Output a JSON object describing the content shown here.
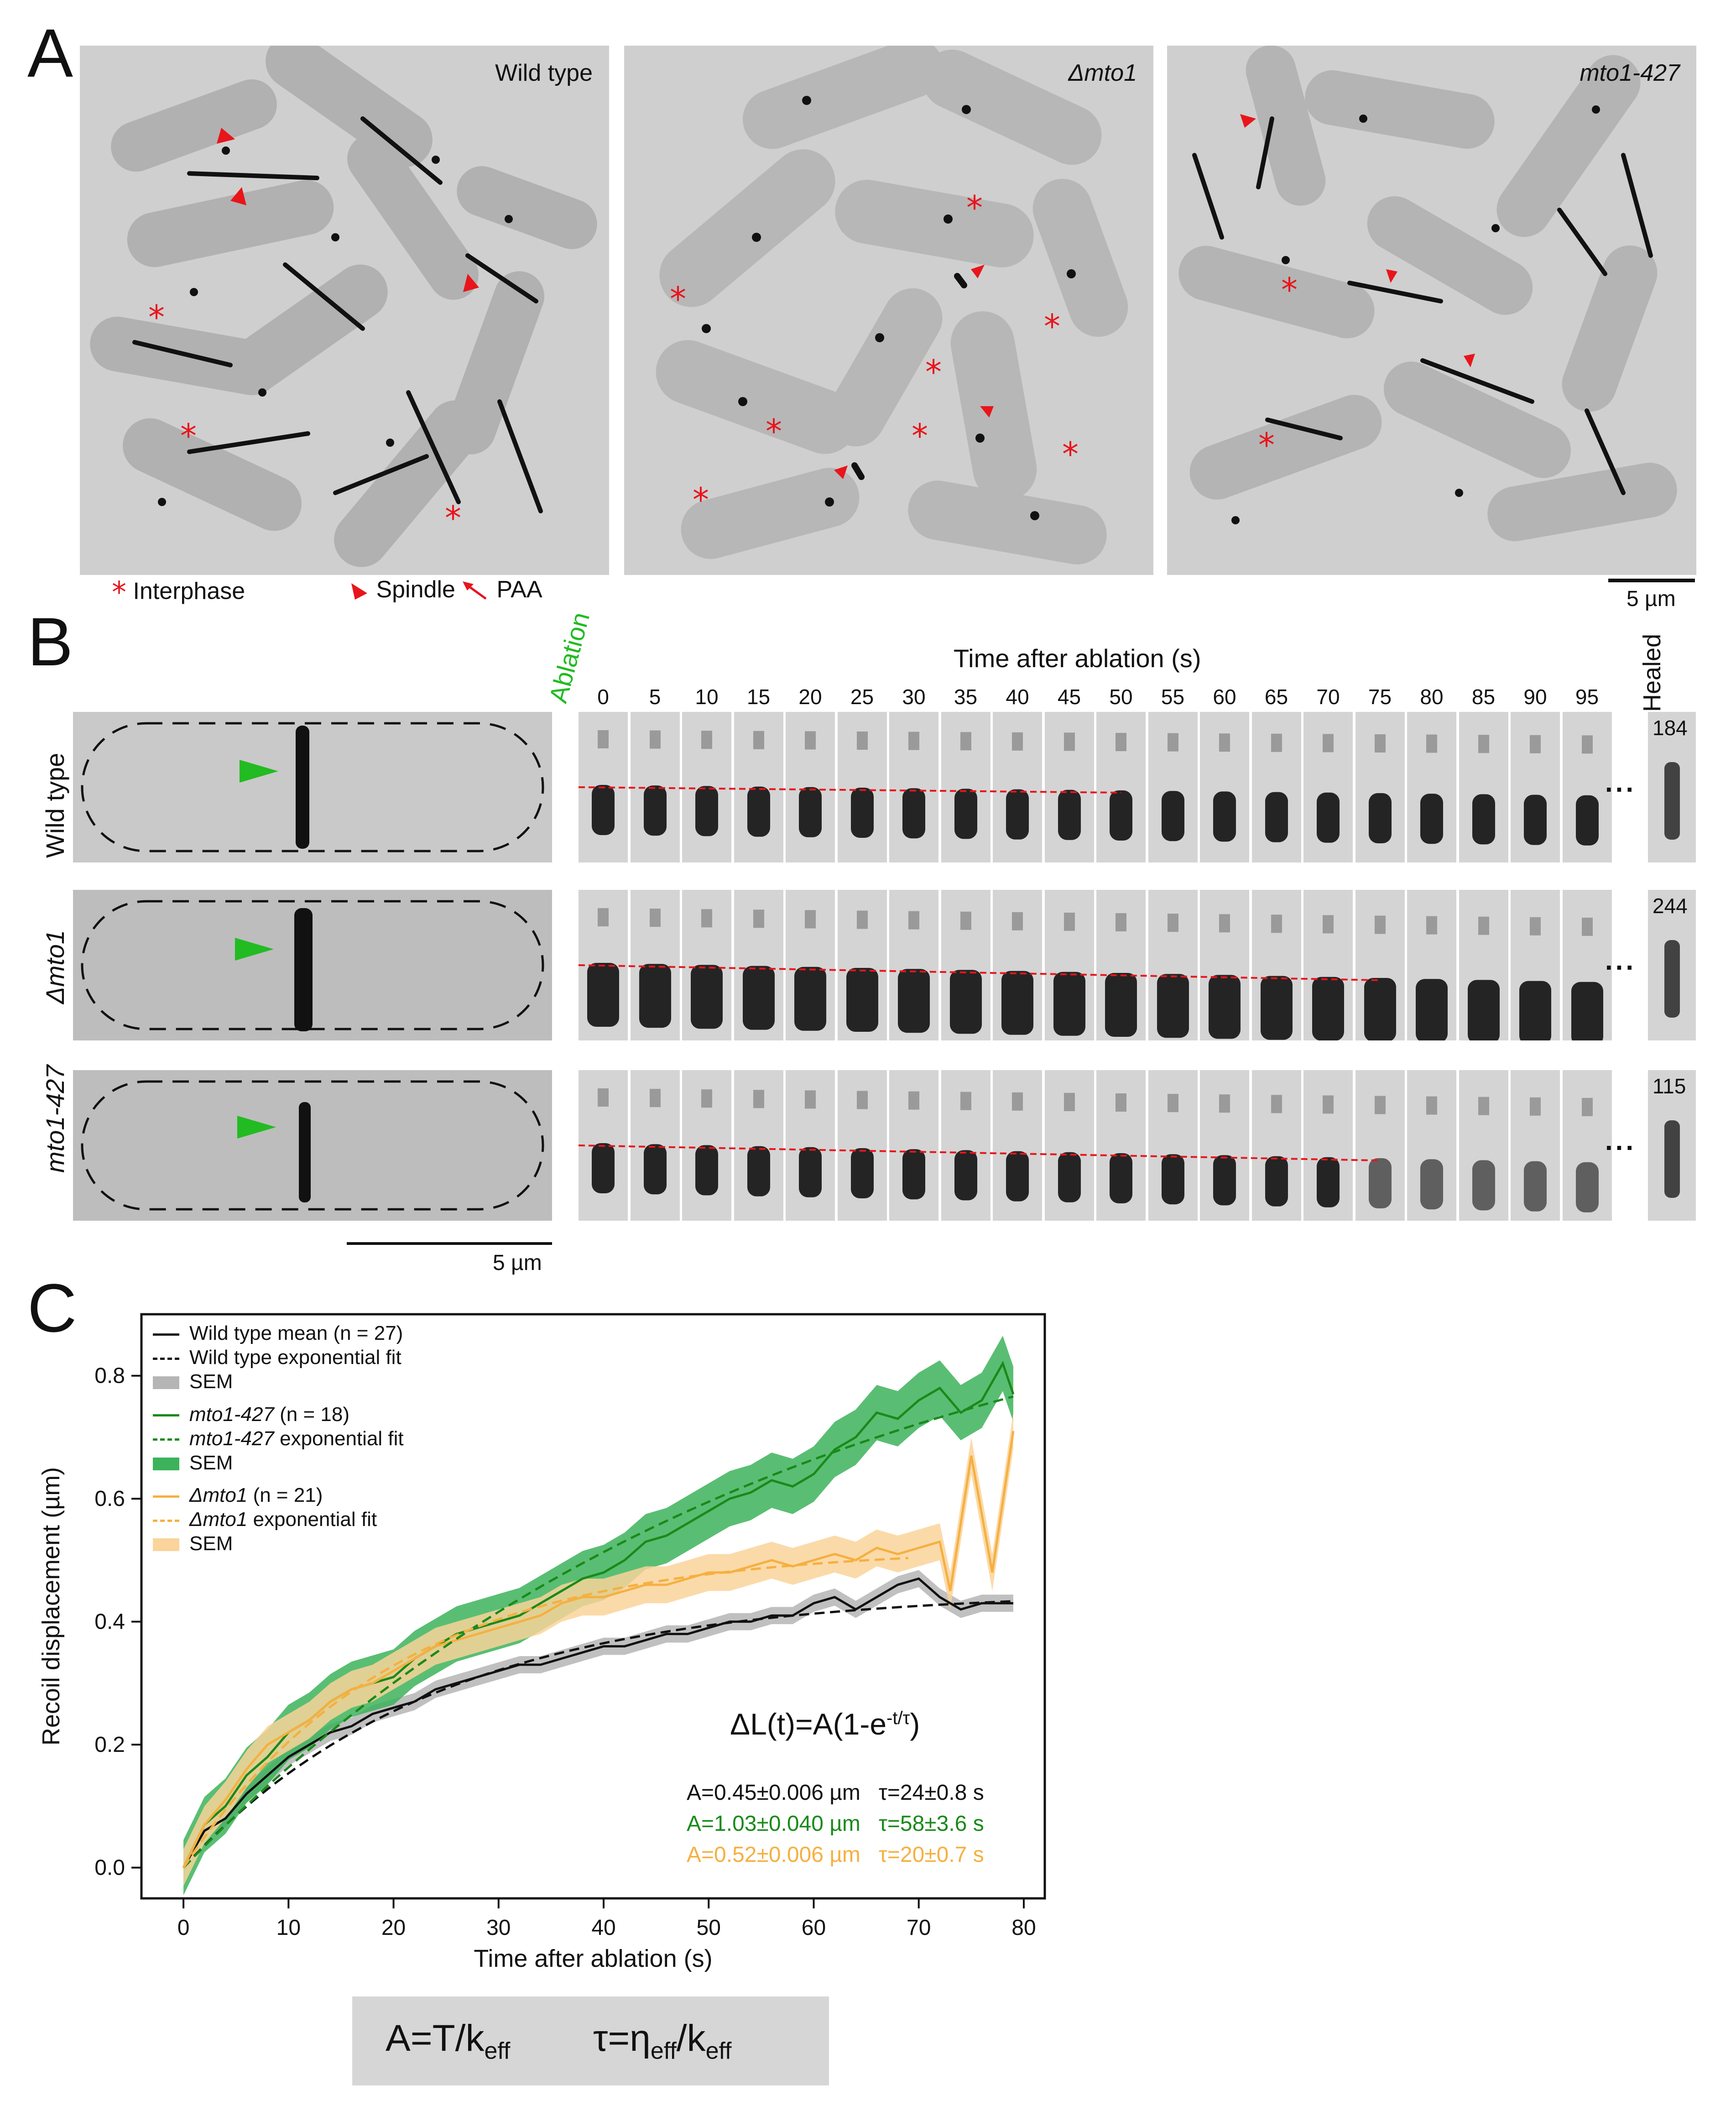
{
  "panels": {
    "a": {
      "letter": "A",
      "images": [
        {
          "label": "Wild type",
          "italic": false
        },
        {
          "label": "Δmto1",
          "italic": true
        },
        {
          "label": "mto1-427",
          "italic": true
        }
      ],
      "legend": {
        "interphase": "Interphase",
        "spindle": "Spindle",
        "paa": "PAA",
        "marker_color": "#e8151b"
      },
      "scale_bar": "5 µm"
    },
    "b": {
      "letter": "B",
      "ablation_label": "Ablation",
      "ablation_color": "#22bb22",
      "time_header": "Time after ablation (s)",
      "times": [
        "0",
        "5",
        "10",
        "15",
        "20",
        "25",
        "30",
        "35",
        "40",
        "45",
        "50",
        "55",
        "60",
        "65",
        "70",
        "75",
        "80",
        "85",
        "90",
        "95"
      ],
      "healed_label": "Healed",
      "ellipsis": "...",
      "rows": [
        {
          "label": "Wild type",
          "italic": false,
          "healed_time": "184"
        },
        {
          "label": "Δmto1",
          "italic": true,
          "healed_time": "244"
        },
        {
          "label": "mto1-427",
          "italic": true,
          "healed_time": "115"
        }
      ],
      "scale_bar": "5 µm"
    },
    "c": {
      "letter": "C",
      "formula": "ΔL(t)=A(1-e",
      "formula_sup": "-t/τ",
      "formula_end": ")",
      "fits": [
        {
          "a": "A=0.45±0.006 µm",
          "tau": "τ=24±0.8 s",
          "color": "#111111"
        },
        {
          "a": "A=1.03±0.040 µm",
          "tau": "τ=58±3.6 s",
          "color": "#1a8a1a"
        },
        {
          "a": "A=0.52±0.006 µm",
          "tau": "τ=20±0.7 s",
          "color": "#f5b041"
        }
      ],
      "legend": [
        {
          "text": "Wild type mean (n = 27)",
          "style": "solid",
          "color": "#111111"
        },
        {
          "text": "Wild type exponential fit",
          "style": "dashed",
          "color": "#111111"
        },
        {
          "text": "SEM",
          "style": "band",
          "color": "#b5b5b5"
        },
        {
          "text": "mto1-427",
          "suffix": " (n = 18)",
          "style": "solid",
          "color": "#1a8a1a"
        },
        {
          "text": "mto1-427",
          "suffix": " exponential fit",
          "style": "dashed",
          "color": "#1a8a1a"
        },
        {
          "text": "SEM",
          "style": "band",
          "color": "#3cb35a"
        },
        {
          "text": "Δmto1",
          "suffix": " (n = 21)",
          "style": "solid",
          "color": "#f5b041"
        },
        {
          "text": "Δmto1",
          "suffix": " exponential fit",
          "style": "dashed",
          "color": "#f5b041"
        },
        {
          "text": "SEM",
          "style": "band",
          "color": "#fad49a"
        }
      ]
    }
  },
  "chart_data": {
    "type": "line",
    "xlabel": "Time after ablation (s)",
    "ylabel": "Recoil displacement (µm)",
    "xlim": [
      -4,
      82
    ],
    "ylim": [
      -0.05,
      0.9
    ],
    "xticks": [
      0,
      10,
      20,
      30,
      40,
      50,
      60,
      70,
      80
    ],
    "yticks": [
      0.0,
      0.2,
      0.4,
      0.6,
      0.8
    ],
    "legend_position": "top-left",
    "series": [
      {
        "name": "Wild type mean (n = 27)",
        "color": "#111111",
        "sem_color": "#b5b5b5",
        "x": [
          0,
          2,
          4,
          6,
          8,
          10,
          12,
          14,
          16,
          18,
          20,
          22,
          24,
          26,
          28,
          30,
          32,
          34,
          36,
          38,
          40,
          42,
          44,
          46,
          48,
          50,
          52,
          54,
          56,
          58,
          60,
          62,
          64,
          66,
          68,
          70,
          72,
          74,
          76,
          78,
          79
        ],
        "y": [
          0.0,
          0.06,
          0.08,
          0.12,
          0.15,
          0.18,
          0.2,
          0.22,
          0.23,
          0.25,
          0.26,
          0.27,
          0.29,
          0.3,
          0.31,
          0.32,
          0.33,
          0.33,
          0.34,
          0.35,
          0.36,
          0.36,
          0.37,
          0.38,
          0.38,
          0.39,
          0.4,
          0.4,
          0.41,
          0.41,
          0.43,
          0.44,
          0.42,
          0.44,
          0.46,
          0.47,
          0.44,
          0.42,
          0.43,
          0.43,
          0.43
        ],
        "sem": 0.014
      },
      {
        "name": "mto1-427 (n = 18)",
        "color": "#1a8a1a",
        "sem_color": "#3cb35a",
        "x": [
          0,
          2,
          4,
          6,
          8,
          10,
          12,
          14,
          16,
          18,
          20,
          22,
          24,
          26,
          28,
          30,
          32,
          34,
          36,
          38,
          40,
          42,
          44,
          46,
          48,
          50,
          52,
          54,
          56,
          58,
          60,
          62,
          64,
          66,
          68,
          70,
          72,
          74,
          76,
          78,
          79
        ],
        "y": [
          0.0,
          0.07,
          0.1,
          0.15,
          0.18,
          0.22,
          0.24,
          0.27,
          0.29,
          0.3,
          0.31,
          0.34,
          0.36,
          0.38,
          0.39,
          0.4,
          0.41,
          0.43,
          0.45,
          0.47,
          0.48,
          0.5,
          0.53,
          0.54,
          0.56,
          0.58,
          0.6,
          0.61,
          0.63,
          0.62,
          0.64,
          0.68,
          0.7,
          0.74,
          0.73,
          0.76,
          0.78,
          0.74,
          0.76,
          0.82,
          0.77
        ],
        "sem": 0.045
      },
      {
        "name": "Δmto1 (n = 21)",
        "color": "#f5b041",
        "sem_color": "#fad49a",
        "x": [
          0,
          2,
          4,
          6,
          8,
          10,
          12,
          14,
          16,
          18,
          20,
          22,
          24,
          26,
          28,
          30,
          32,
          34,
          36,
          38,
          40,
          42,
          44,
          46,
          48,
          50,
          52,
          54,
          56,
          58,
          60,
          62,
          64,
          66,
          68,
          70,
          72,
          73,
          75,
          77,
          79
        ],
        "y": [
          0.0,
          0.07,
          0.11,
          0.16,
          0.2,
          0.22,
          0.24,
          0.27,
          0.29,
          0.3,
          0.32,
          0.34,
          0.36,
          0.37,
          0.38,
          0.39,
          0.4,
          0.41,
          0.43,
          0.44,
          0.44,
          0.45,
          0.46,
          0.46,
          0.47,
          0.48,
          0.48,
          0.49,
          0.5,
          0.49,
          0.5,
          0.51,
          0.5,
          0.52,
          0.51,
          0.52,
          0.53,
          0.45,
          0.67,
          0.48,
          0.71
        ],
        "sem": 0.03
      },
      {
        "name": "Wild type exponential fit",
        "color": "#111111",
        "dashed": true,
        "A": 0.45,
        "tau": 24,
        "xmax": 79
      },
      {
        "name": "mto1-427 exponential fit",
        "color": "#1a8a1a",
        "dashed": true,
        "A": 1.03,
        "tau": 58,
        "xmax": 79
      },
      {
        "name": "Δmto1 exponential fit",
        "color": "#f5b041",
        "dashed": true,
        "A": 0.52,
        "tau": 20,
        "xmax": 69
      }
    ]
  }
}
